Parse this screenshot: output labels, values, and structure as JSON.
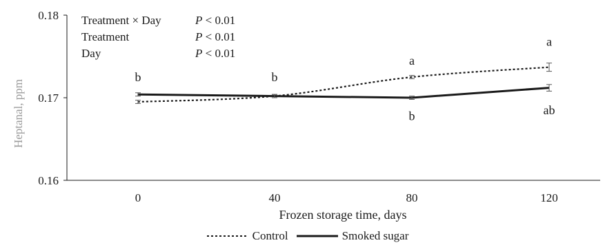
{
  "stats": [
    {
      "label": "Treatment × Day",
      "p_symbol": "P",
      "p_rest": " < 0.01"
    },
    {
      "label": "Treatment",
      "p_symbol": "P",
      "p_rest": " < 0.01"
    },
    {
      "label": "Day",
      "p_symbol": "P",
      "p_rest": " < 0.01"
    }
  ],
  "chart_data": {
    "type": "line",
    "xlabel": "Frozen storage time, days",
    "ylabel": "Heptanal, ppm",
    "categories": [
      "0",
      "40",
      "80",
      "120"
    ],
    "x": [
      0,
      40,
      80,
      120
    ],
    "ylim": [
      0.16,
      0.18
    ],
    "yticks": [
      "0.16",
      "0.17",
      "0.18"
    ],
    "grid": false,
    "legend_position": "bottom",
    "series": [
      {
        "name": "Control",
        "style": "dotted",
        "color": "#1a1a1a",
        "values": [
          0.1695,
          0.1702,
          0.1725,
          0.1737
        ],
        "errors": [
          0.0002,
          0.0002,
          0.0002,
          0.0005
        ]
      },
      {
        "name": "Smoked sugar",
        "style": "solid",
        "color": "#1a1a1a",
        "values": [
          0.1704,
          0.1702,
          0.17,
          0.1712
        ],
        "errors": [
          0.0002,
          0.0002,
          0.0002,
          0.0004
        ]
      }
    ],
    "annotations": [
      {
        "text": "b",
        "x": 0,
        "y": 0.1725
      },
      {
        "text": "b",
        "x": 40,
        "y": 0.1725
      },
      {
        "text": "a",
        "x": 80,
        "y": 0.1745
      },
      {
        "text": "b",
        "x": 80,
        "y": 0.1678
      },
      {
        "text": "a",
        "x": 120,
        "y": 0.1768
      },
      {
        "text": "ab",
        "x": 120,
        "y": 0.1685
      }
    ]
  }
}
